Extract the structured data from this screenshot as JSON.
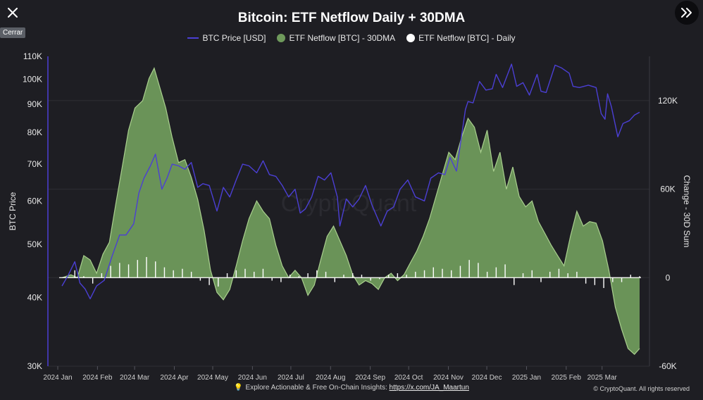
{
  "ui": {
    "tooltip_text": "Cerrar",
    "footer_text": "Explore Actionable & Free On-Chain Insights:",
    "footer_link": "https://x.com/JA_Maartun",
    "copyright": "© CryptoQuant. All rights reserved",
    "watermark": "CryptoQuant",
    "close_icon": "close-icon",
    "expand_icon": "double-chevron-right-icon",
    "bulb_icon": "lightbulb-icon"
  },
  "chart_data": {
    "type": "line",
    "title": "Bitcoin: ETF Netflow Daily + 30DMA",
    "ylabel": "BTC Price",
    "y2label": "Change - 30D Sum",
    "legend": {
      "placement": "top-center",
      "entries": [
        "BTC Price [USD]",
        "ETF Netflow [BTC] - 30DMA",
        "ETF Netflow [BTC] - Daily"
      ]
    },
    "colors": {
      "price": "#4b3fd4",
      "netflow_fill": "#6f9a5c",
      "netflow_line": "#a9cf8e",
      "daily": "#ffffff",
      "background": "#1e1e23"
    },
    "y_scale": "log",
    "ylim": [
      30000,
      110000
    ],
    "y_ticks": [
      110000,
      100000,
      90000,
      80000,
      70000,
      60000,
      50000,
      40000,
      30000
    ],
    "y_tick_labels": [
      "110K",
      "100K",
      "90K",
      "80K",
      "70K",
      "60K",
      "50K",
      "40K",
      "30K"
    ],
    "y2lim": [
      -60000,
      150000
    ],
    "y2_ticks": [
      120000,
      60000,
      0,
      -60000
    ],
    "y2_tick_labels": [
      "120K",
      "60K",
      "0",
      "-60K"
    ],
    "x_range": [
      "2024-01-01",
      "2025-03-27"
    ],
    "x_ticks": [
      "2024-01-01",
      "2024-02-01",
      "2024-03-01",
      "2024-04-01",
      "2024-05-01",
      "2024-06-01",
      "2024-07-01",
      "2024-08-01",
      "2024-09-01",
      "2024-10-01",
      "2024-11-01",
      "2024-12-01",
      "2025-01-01",
      "2025-02-01",
      "2025-03-01"
    ],
    "x_tick_labels": [
      "2024 Jan",
      "2024 Feb",
      "2024 Mar",
      "2024 Apr",
      "2024 May",
      "2024 Jun",
      "2024 Jul",
      "2024 Aug",
      "2024 Sep",
      "2024 Oct",
      "2024 Nov",
      "2024 Dec",
      "2025 Jan",
      "2025 Feb",
      "2025 Mar"
    ],
    "grid": "horizontal",
    "series": [
      {
        "name": "BTC Price [USD]",
        "axis": "left",
        "x": [
          "2024-01-01",
          "2024-01-06",
          "2024-01-11",
          "2024-01-15",
          "2024-01-19",
          "2024-01-23",
          "2024-01-28",
          "2024-02-03",
          "2024-02-09",
          "2024-02-15",
          "2024-02-20",
          "2024-02-26",
          "2024-03-01",
          "2024-03-05",
          "2024-03-10",
          "2024-03-14",
          "2024-03-19",
          "2024-03-23",
          "2024-03-27",
          "2024-04-01",
          "2024-04-06",
          "2024-04-11",
          "2024-04-16",
          "2024-04-20",
          "2024-04-25",
          "2024-05-01",
          "2024-05-06",
          "2024-05-11",
          "2024-05-16",
          "2024-05-21",
          "2024-05-26",
          "2024-06-01",
          "2024-06-06",
          "2024-06-11",
          "2024-06-16",
          "2024-06-21",
          "2024-06-26",
          "2024-07-01",
          "2024-07-05",
          "2024-07-09",
          "2024-07-14",
          "2024-07-19",
          "2024-07-24",
          "2024-07-29",
          "2024-08-03",
          "2024-08-05",
          "2024-08-10",
          "2024-08-15",
          "2024-08-20",
          "2024-08-25",
          "2024-08-30",
          "2024-09-06",
          "2024-09-11",
          "2024-09-16",
          "2024-09-21",
          "2024-09-27",
          "2024-10-03",
          "2024-10-10",
          "2024-10-15",
          "2024-10-21",
          "2024-10-26",
          "2024-10-30",
          "2024-11-04",
          "2024-11-07",
          "2024-11-11",
          "2024-11-13",
          "2024-11-17",
          "2024-11-22",
          "2024-11-27",
          "2024-12-02",
          "2024-12-05",
          "2024-12-10",
          "2024-12-17",
          "2024-12-21",
          "2024-12-26",
          "2024-12-31",
          "2025-01-06",
          "2025-01-09",
          "2025-01-13",
          "2025-01-20",
          "2025-01-25",
          "2025-01-31",
          "2025-02-03",
          "2025-02-08",
          "2025-02-15",
          "2025-02-21",
          "2025-02-25",
          "2025-02-28",
          "2025-03-02",
          "2025-03-05",
          "2025-03-10",
          "2025-03-14",
          "2025-03-19",
          "2025-03-23",
          "2025-03-27"
        ],
        "values": [
          42000,
          44000,
          46500,
          42500,
          41500,
          39800,
          42000,
          43000,
          47500,
          52000,
          52000,
          54500,
          62000,
          66000,
          69500,
          73000,
          63000,
          66000,
          70000,
          69500,
          68500,
          70500,
          63500,
          64500,
          64000,
          57500,
          63500,
          61000,
          65500,
          70000,
          69500,
          67500,
          71000,
          67000,
          66500,
          64000,
          61000,
          63000,
          57000,
          58000,
          61000,
          66500,
          65500,
          67500,
          61000,
          54000,
          60500,
          58500,
          60500,
          64000,
          59000,
          54000,
          57500,
          58500,
          63000,
          65500,
          61000,
          60000,
          66000,
          67500,
          67000,
          72000,
          68000,
          76000,
          88000,
          91000,
          90500,
          99000,
          95500,
          96000,
          102000,
          96500,
          106500,
          97000,
          98500,
          93500,
          102000,
          95000,
          94500,
          106000,
          104800,
          102500,
          97000,
          96500,
          97500,
          96500,
          86500,
          84500,
          94000,
          89000,
          78500,
          83000,
          84000,
          86000,
          87000
        ]
      },
      {
        "name": "ETF Netflow [BTC] - 30DMA",
        "axis": "right",
        "x": [
          "2024-01-01",
          "2024-01-08",
          "2024-01-13",
          "2024-01-18",
          "2024-01-23",
          "2024-01-28",
          "2024-02-02",
          "2024-02-07",
          "2024-02-12",
          "2024-02-17",
          "2024-02-22",
          "2024-02-27",
          "2024-03-04",
          "2024-03-09",
          "2024-03-13",
          "2024-03-17",
          "2024-03-22",
          "2024-03-27",
          "2024-04-01",
          "2024-04-06",
          "2024-04-11",
          "2024-04-16",
          "2024-04-21",
          "2024-04-26",
          "2024-05-01",
          "2024-05-06",
          "2024-05-11",
          "2024-05-16",
          "2024-05-21",
          "2024-05-26",
          "2024-06-01",
          "2024-06-06",
          "2024-06-11",
          "2024-06-16",
          "2024-06-21",
          "2024-06-26",
          "2024-07-01",
          "2024-07-06",
          "2024-07-11",
          "2024-07-16",
          "2024-07-21",
          "2024-07-26",
          "2024-07-31",
          "2024-08-05",
          "2024-08-10",
          "2024-08-15",
          "2024-08-20",
          "2024-08-25",
          "2024-08-30",
          "2024-09-04",
          "2024-09-09",
          "2024-09-14",
          "2024-09-19",
          "2024-09-24",
          "2024-09-29",
          "2024-10-04",
          "2024-10-09",
          "2024-10-14",
          "2024-10-19",
          "2024-10-24",
          "2024-10-29",
          "2024-11-03",
          "2024-11-08",
          "2024-11-13",
          "2024-11-18",
          "2024-11-23",
          "2024-11-28",
          "2024-12-03",
          "2024-12-08",
          "2024-12-13",
          "2024-12-18",
          "2024-12-23",
          "2024-12-28",
          "2025-01-02",
          "2025-01-07",
          "2025-01-12",
          "2025-01-17",
          "2025-01-22",
          "2025-01-27",
          "2025-02-01",
          "2025-02-06",
          "2025-02-11",
          "2025-02-16",
          "2025-02-21",
          "2025-02-26",
          "2025-03-03",
          "2025-03-08",
          "2025-03-13",
          "2025-03-18",
          "2025-03-23",
          "2025-03-27"
        ],
        "values": [
          0,
          2000,
          0,
          15000,
          12000,
          3000,
          16000,
          24000,
          50000,
          75000,
          100000,
          115000,
          120000,
          135000,
          142000,
          130000,
          115000,
          95000,
          78000,
          80000,
          68000,
          53000,
          32000,
          5000,
          -10000,
          -15000,
          -8000,
          8000,
          25000,
          40000,
          52000,
          45000,
          40000,
          22000,
          8000,
          0,
          5000,
          0,
          -12000,
          -5000,
          12000,
          28000,
          35000,
          25000,
          15000,
          2000,
          -5000,
          -2000,
          -4000,
          -8000,
          0,
          3000,
          -2000,
          2000,
          10000,
          18000,
          28000,
          40000,
          55000,
          70000,
          85000,
          80000,
          95000,
          108000,
          102000,
          85000,
          100000,
          72000,
          85000,
          60000,
          75000,
          55000,
          48000,
          52000,
          38000,
          30000,
          22000,
          15000,
          8000,
          28000,
          45000,
          35000,
          38000,
          37000,
          25000,
          5000,
          -20000,
          -35000,
          -48000,
          -52000,
          -48000
        ]
      },
      {
        "name": "ETF Netflow [BTC] - Daily",
        "axis": "right",
        "x": [
          "2024-01-11",
          "2024-01-18",
          "2024-01-25",
          "2024-02-01",
          "2024-02-08",
          "2024-02-15",
          "2024-02-22",
          "2024-02-29",
          "2024-03-07",
          "2024-03-14",
          "2024-03-21",
          "2024-03-28",
          "2024-04-04",
          "2024-04-11",
          "2024-04-18",
          "2024-04-25",
          "2024-05-02",
          "2024-05-09",
          "2024-05-16",
          "2024-05-23",
          "2024-05-30",
          "2024-06-06",
          "2024-06-13",
          "2024-06-20",
          "2024-06-27",
          "2024-07-04",
          "2024-07-11",
          "2024-07-18",
          "2024-07-25",
          "2024-08-01",
          "2024-08-08",
          "2024-08-15",
          "2024-08-22",
          "2024-08-29",
          "2024-09-05",
          "2024-09-12",
          "2024-09-19",
          "2024-09-26",
          "2024-10-03",
          "2024-10-10",
          "2024-10-17",
          "2024-10-24",
          "2024-10-31",
          "2024-11-07",
          "2024-11-14",
          "2024-11-21",
          "2024-11-28",
          "2024-12-05",
          "2024-12-12",
          "2024-12-19",
          "2024-12-26",
          "2025-01-02",
          "2025-01-09",
          "2025-01-16",
          "2025-01-23",
          "2025-01-30",
          "2025-02-06",
          "2025-02-13",
          "2025-02-20",
          "2025-02-27",
          "2025-03-06",
          "2025-03-13",
          "2025-03-20",
          "2025-03-27"
        ],
        "values": [
          5000,
          1000,
          -4000,
          3000,
          8000,
          10000,
          9000,
          12000,
          14000,
          11000,
          7000,
          5000,
          6000,
          4000,
          -2000,
          -5000,
          -6000,
          3000,
          5000,
          6000,
          4000,
          6000,
          -2000,
          -3000,
          2000,
          1000,
          3000,
          5000,
          4000,
          -3000,
          2000,
          3000,
          2000,
          -2000,
          -1000,
          2000,
          3000,
          2000,
          4000,
          5000,
          7000,
          6000,
          5000,
          8000,
          12000,
          10000,
          4000,
          7000,
          9000,
          -5000,
          3000,
          5000,
          -3000,
          4000,
          6000,
          3000,
          4000,
          -4000,
          -5000,
          -7000,
          -3000,
          -3000,
          2000,
          1000
        ]
      }
    ]
  }
}
